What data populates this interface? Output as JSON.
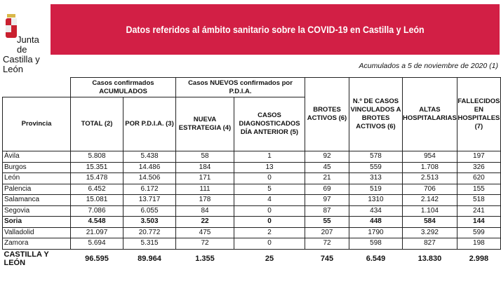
{
  "logo": {
    "line1": "Junta de",
    "line2": "Castilla y León"
  },
  "banner_title": "Datos referidos al ámbito sanitario sobre la COVID-19 en Castilla y León",
  "date_note": "Acumulados a 5 de noviembre de 2020 (1)",
  "colors": {
    "banner": "#d21f45"
  },
  "headers": {
    "group_acumulados": "Casos confirmados ACUMULADOS",
    "group_nuevos": "Casos NUEVOS confirmados por P.D.I.A.",
    "provincia": "Provincia",
    "total": "TOTAL (2)",
    "por_pdia": "POR P.D.I.A. (3)",
    "nueva_estrategia": "NUEVA ESTRATEGIA (4)",
    "dia_anterior": "CASOS DIAGNOSTICADOS DÍA ANTERIOR (5)",
    "brotes": "BROTES ACTIVOS (6)",
    "vinculados": "N.º DE CASOS VINCULADOS A BROTES ACTIVOS (6)",
    "altas": "ALTAS HOSPITALARIAS",
    "fallecidos": "FALLECIDOS EN HOSPITALES (7)"
  },
  "rows": [
    [
      "Ávila",
      "5.808",
      "5.438",
      "58",
      "1",
      "92",
      "578",
      "954",
      "197"
    ],
    [
      "Burgos",
      "15.351",
      "14.486",
      "184",
      "13",
      "45",
      "559",
      "1.708",
      "326"
    ],
    [
      "León",
      "15.478",
      "14.506",
      "171",
      "0",
      "21",
      "313",
      "2.513",
      "620"
    ],
    [
      "Palencia",
      "6.452",
      "6.172",
      "111",
      "5",
      "69",
      "519",
      "706",
      "155"
    ],
    [
      "Salamanca",
      "15.081",
      "13.717",
      "178",
      "4",
      "97",
      "1310",
      "2.142",
      "518"
    ],
    [
      "Segovia",
      "7.086",
      "6.055",
      "84",
      "0",
      "87",
      "434",
      "1.104",
      "241"
    ],
    [
      "Soria",
      "4.548",
      "3.503",
      "22",
      "0",
      "55",
      "448",
      "584",
      "144"
    ],
    [
      "Valladolid",
      "21.097",
      "20.772",
      "475",
      "2",
      "207",
      "1790",
      "3.292",
      "599"
    ],
    [
      "Zamora",
      "5.694",
      "5.315",
      "72",
      "0",
      "72",
      "598",
      "827",
      "198"
    ]
  ],
  "bold_row": "Soria",
  "total": [
    "CASTILLA Y LEÓN",
    "96.595",
    "89.964",
    "1.355",
    "25",
    "745",
    "6.549",
    "13.830",
    "2.998"
  ]
}
